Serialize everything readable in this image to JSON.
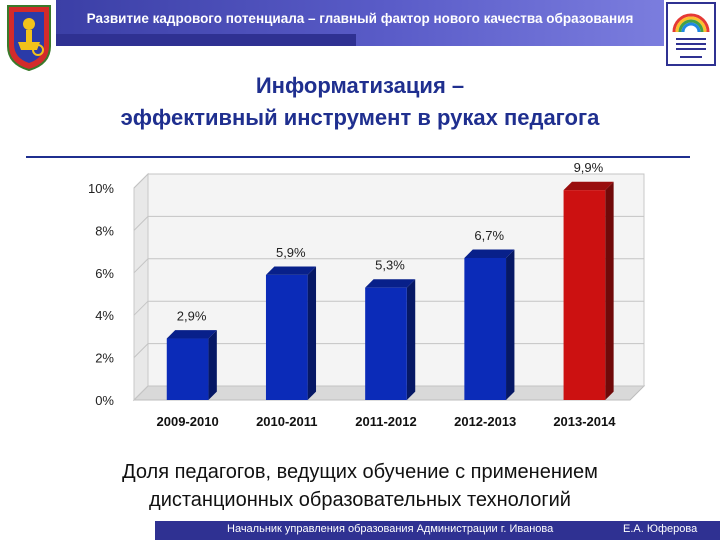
{
  "header": {
    "title": "Развитие кадрового потенциала – главный фактор нового качества образования"
  },
  "emblem": {
    "icon": "city-coat-of-arms-icon"
  },
  "logo": {
    "icon": "rainbow-logo-icon"
  },
  "title": {
    "line1": "Информатизация –",
    "line2": "эффективный инструмент в руках педагога"
  },
  "caption": {
    "line1": "Доля педагогов, ведущих обучение с применением",
    "line2": "дистанционных образовательных технологий"
  },
  "footer": {
    "left": "Начальник управления образования Администрации  г. Иванова",
    "right": "Е.А. Юферова"
  },
  "colors": {
    "header": "#3b3fa6",
    "title": "#1f2f8f",
    "bar_blue": "#0b2bb8",
    "bar_red": "#cc1111"
  },
  "chart_data": {
    "type": "bar",
    "categories": [
      "2009-2010",
      "2010-2011",
      "2011-2012",
      "2012-2013",
      "2013-2014"
    ],
    "values": [
      2.9,
      5.9,
      5.3,
      6.7,
      9.9
    ],
    "data_labels": [
      "2,9%",
      "5,9%",
      "5,3%",
      "6,7%",
      "9,9%"
    ],
    "bar_colors": [
      "#0b2bb8",
      "#0b2bb8",
      "#0b2bb8",
      "#0b2bb8",
      "#cc1111"
    ],
    "yticks": [
      0,
      2,
      4,
      6,
      8,
      10
    ],
    "ytick_labels": [
      "0%",
      "2%",
      "4%",
      "6%",
      "8%",
      "10%"
    ],
    "ylim": [
      0,
      10
    ],
    "grid": true,
    "legend": "none",
    "style": "3d"
  }
}
